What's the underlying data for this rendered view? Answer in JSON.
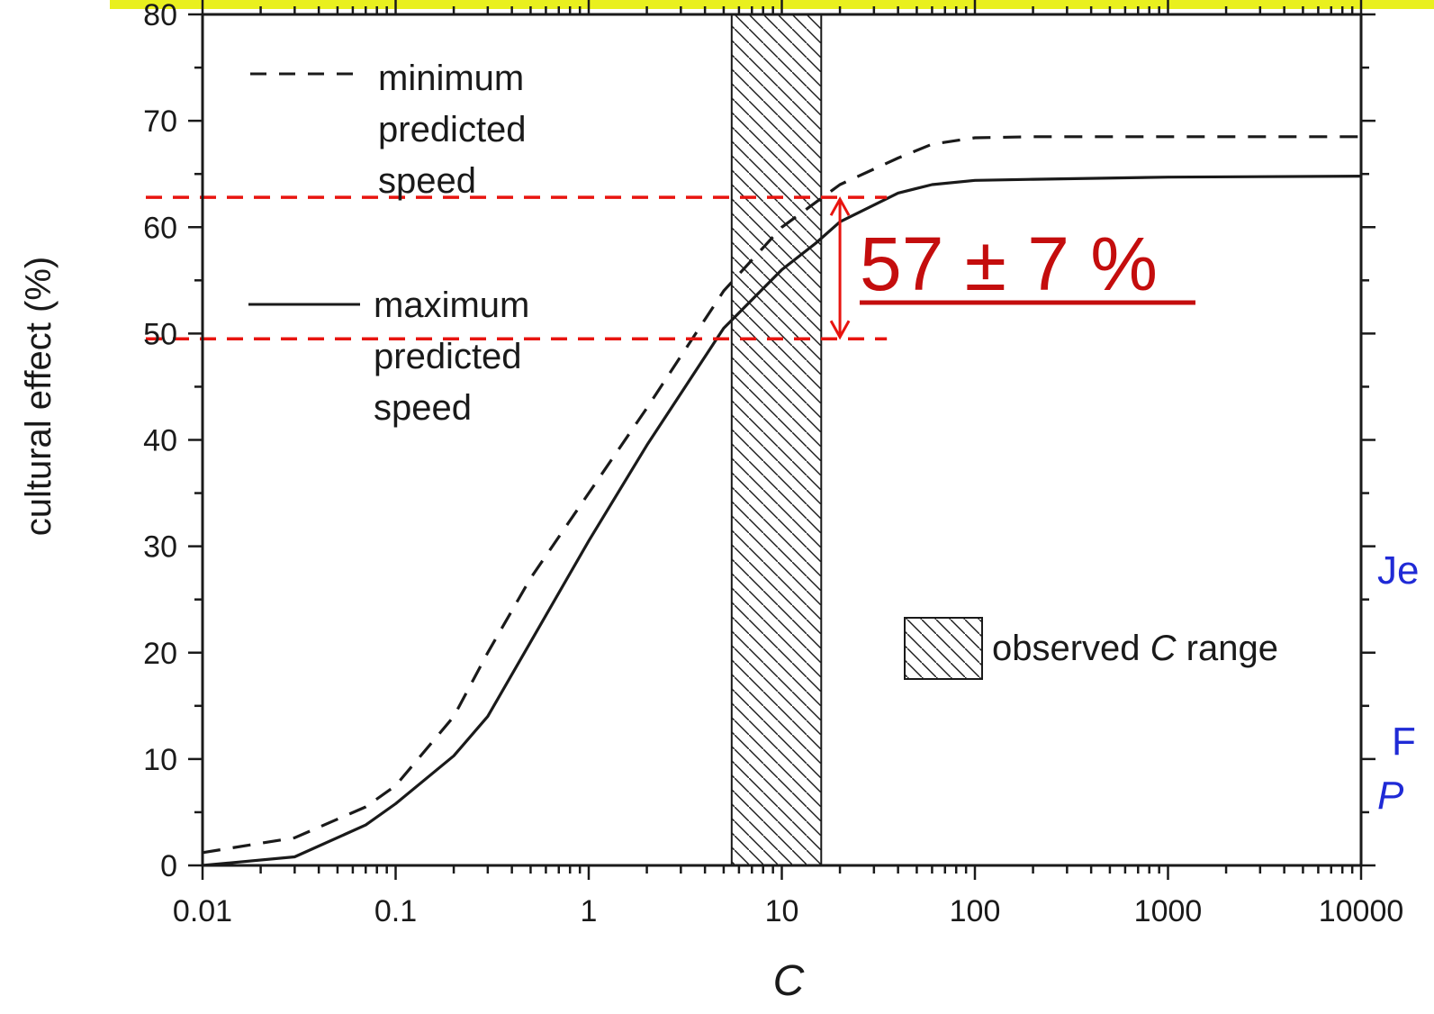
{
  "colors": {
    "top_bar": "#e9f01e",
    "axis": "#1a1a1a",
    "guide_lines": "#e8140f",
    "annotation": "#c40d0d",
    "side_text": "#1f2ad6"
  },
  "annotation": {
    "text": "57 ± 7 %"
  },
  "side_text": {
    "line1": "Je",
    "line2": "F",
    "line3": "P"
  },
  "chart_data": {
    "type": "line",
    "xlabel": "C",
    "ylabel": "cultural effect (%)",
    "xscale": "log",
    "xlim": [
      0.01,
      10000
    ],
    "ylim": [
      0,
      80
    ],
    "x_tick_labels": [
      "0.01",
      "0.1",
      "1",
      "10",
      "100",
      "1000",
      "10000"
    ],
    "y_tick_labels": [
      "0",
      "10",
      "20",
      "30",
      "40",
      "50",
      "60",
      "70",
      "80"
    ],
    "legend_position": "top-left",
    "series": [
      {
        "name": "minimum predicted speed",
        "style": "dashed",
        "x": [
          0.01,
          0.03,
          0.07,
          0.1,
          0.2,
          0.3,
          0.5,
          1,
          2,
          5,
          10,
          20,
          40,
          60,
          100,
          200,
          1000,
          10000
        ],
        "y": [
          1.2,
          2.6,
          5.5,
          7.5,
          14,
          20,
          27,
          35,
          43,
          54,
          60,
          64,
          66.5,
          67.8,
          68.4,
          68.5,
          68.5,
          68.5
        ]
      },
      {
        "name": "maximum predicted speed",
        "style": "solid",
        "x": [
          0.01,
          0.03,
          0.07,
          0.1,
          0.2,
          0.3,
          0.5,
          1,
          2,
          5,
          10,
          15,
          20,
          40,
          60,
          100,
          200,
          1000,
          10000
        ],
        "y": [
          0,
          0.8,
          3.8,
          5.8,
          10.3,
          14,
          21,
          30.5,
          39.5,
          50.5,
          56,
          58.5,
          60.5,
          63.2,
          64,
          64.4,
          64.5,
          64.7,
          64.8
        ]
      }
    ],
    "observed_range": {
      "label_prefix": "observed ",
      "label_var": "C",
      "label_suffix": " range",
      "x_start": 5.5,
      "x_end": 16
    },
    "reference_lines": [
      {
        "y": 62.8,
        "x_end": 35,
        "style": "dashed"
      },
      {
        "y": 49.5,
        "x_end": 35,
        "style": "dashed"
      }
    ],
    "double_arrow": {
      "x": 20,
      "y_from": 49.5,
      "y_to": 62.8
    }
  }
}
